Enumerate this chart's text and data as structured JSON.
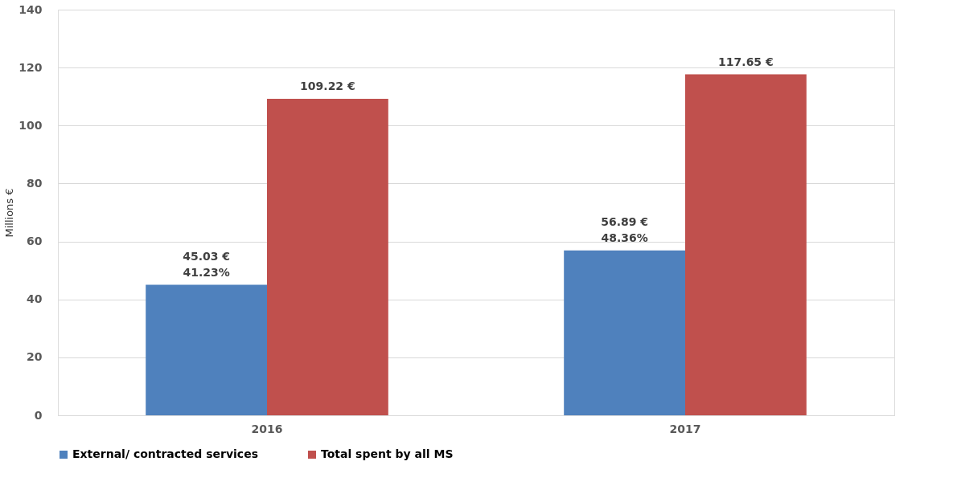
{
  "chart_data": {
    "type": "bar",
    "ylabel": "Millions €",
    "categories": [
      "2016",
      "2017"
    ],
    "series": [
      {
        "name": "External/ contracted services",
        "color": "#4f81bd",
        "values": [
          45.03,
          56.89
        ],
        "value_labels": [
          "45.03 €\n41.23%",
          "56.89 €\n48.36%"
        ]
      },
      {
        "name": "Total spent by all MS",
        "color": "#c0504d",
        "values": [
          109.22,
          117.65
        ],
        "value_labels": [
          "109.22 €",
          "117.65 €"
        ]
      }
    ],
    "ylim": [
      0,
      140
    ],
    "yticks": [
      0,
      20,
      40,
      60,
      80,
      100,
      120,
      140
    ],
    "grid": "y",
    "legend": "bottom"
  }
}
